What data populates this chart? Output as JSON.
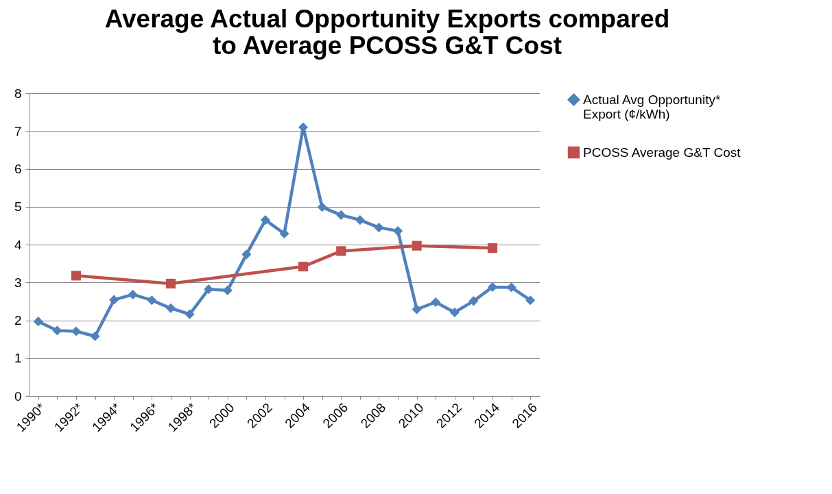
{
  "chart_data": {
    "type": "line",
    "title": "Average Actual Opportunity Exports compared to Average PCOSS G&T Cost",
    "categories": [
      "1990*",
      null,
      "1992*",
      null,
      "1994*",
      null,
      "1996*",
      null,
      "1998*",
      null,
      "2000",
      null,
      "2002",
      null,
      "2004",
      null,
      "2006",
      null,
      "2008",
      null,
      "2010",
      null,
      "2012",
      null,
      "2014",
      null,
      "2016"
    ],
    "series": [
      {
        "name": "Actual Avg Opportunity* Export (¢/kWh)",
        "color": "#4f81bd",
        "marker": "diamond",
        "values": [
          1.97,
          1.73,
          1.71,
          1.58,
          2.54,
          2.68,
          2.53,
          2.32,
          2.16,
          2.82,
          2.79,
          3.74,
          4.65,
          4.29,
          7.1,
          4.99,
          4.78,
          4.65,
          4.45,
          4.36,
          2.29,
          2.48,
          2.21,
          2.51,
          2.88,
          2.87,
          2.53
        ]
      },
      {
        "name": "PCOSS Average G&T Cost",
        "color": "#c0504d",
        "marker": "square",
        "values": [
          null,
          null,
          3.18,
          null,
          null,
          null,
          null,
          2.97,
          null,
          null,
          null,
          null,
          null,
          null,
          3.42,
          null,
          3.83,
          null,
          null,
          null,
          3.97,
          null,
          null,
          null,
          3.91,
          null,
          null
        ]
      }
    ],
    "ylim": [
      0,
      8
    ],
    "yticks": [
      0,
      1,
      2,
      3,
      4,
      5,
      6,
      7,
      8
    ],
    "grid": "y",
    "legend": "right"
  }
}
